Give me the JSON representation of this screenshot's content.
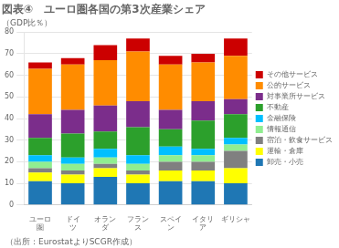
{
  "chart_data": {
    "type": "bar",
    "title": "図表④　ユーロ圏各国の第3次産業シェア",
    "subtitle": "（GDP比％）",
    "footnote": "（出所：EurostatよりSCGR作成）",
    "categories": [
      "ユーロ\n圏",
      "ドイ\nツ",
      "オラン\nダ",
      "フラン\nス",
      "スペイ\nン",
      "イタリ\nア",
      "ギリシャ"
    ],
    "series": [
      {
        "name": "卸売・小売",
        "color": "#1f77b4",
        "values": [
          11,
          10,
          13,
          10,
          11,
          11,
          10
        ]
      },
      {
        "name": "運輸・倉庫",
        "color": "#ffff00",
        "values": [
          4,
          4,
          4,
          4,
          5,
          5,
          7
        ]
      },
      {
        "name": "宿泊・飲食サービス",
        "color": "#808080",
        "values": [
          2,
          2,
          2,
          2,
          4,
          4,
          8
        ]
      },
      {
        "name": "情報通信",
        "color": "#90ee90",
        "values": [
          3,
          3,
          3,
          3,
          3,
          3,
          3
        ]
      },
      {
        "name": "金融保険",
        "color": "#00bfff",
        "values": [
          3,
          3,
          4,
          4,
          4,
          3,
          3
        ]
      },
      {
        "name": "不動産",
        "color": "#2ca02c",
        "values": [
          8,
          11,
          8,
          13,
          8,
          13,
          11
        ]
      },
      {
        "name": "対事業所サービス",
        "color": "#7b2d8b",
        "values": [
          11,
          11,
          12,
          12,
          9,
          9,
          7
        ]
      },
      {
        "name": "公的サービス",
        "color": "#ff8c00",
        "values": [
          21,
          21,
          21,
          23,
          21,
          18,
          20
        ]
      },
      {
        "name": "その他サービス",
        "color": "#cc0000",
        "values": [
          3,
          3,
          7,
          6,
          4,
          4,
          8
        ]
      }
    ],
    "stacked": true,
    "ylim": [
      0,
      80
    ],
    "yticks": [
      0,
      10,
      20,
      30,
      40,
      50,
      60,
      70,
      80
    ],
    "grid": true,
    "legend": "right"
  }
}
